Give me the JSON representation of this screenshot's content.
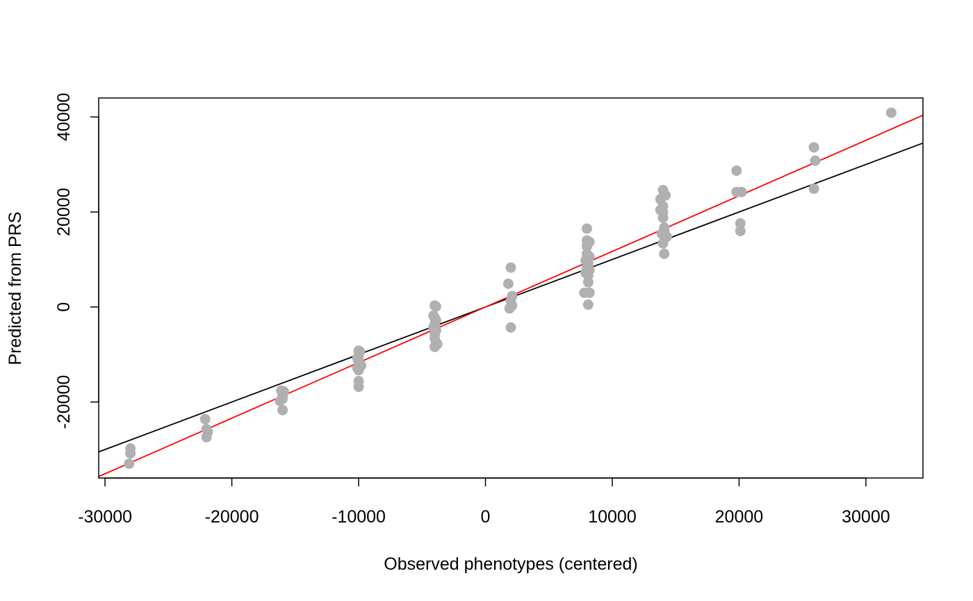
{
  "chart_data": {
    "type": "scatter",
    "title": "",
    "xlabel": "Observed phenotypes (centered)",
    "ylabel": "Predicted from PRS",
    "xlim": [
      -30500,
      34500
    ],
    "ylim": [
      -36000,
      44000
    ],
    "x_ticks": [
      -30000,
      -20000,
      -10000,
      0,
      10000,
      20000,
      30000
    ],
    "y_ticks": [
      -20000,
      0,
      20000,
      40000
    ],
    "x_tick_labels": [
      "-30000",
      "-20000",
      "-10000",
      "0",
      "10000",
      "20000",
      "30000"
    ],
    "y_tick_labels": [
      "-20000",
      "0",
      "20000",
      "40000"
    ],
    "grid": false,
    "legend": "none",
    "point_color": "#b0b0b0",
    "points": [
      {
        "x": -28000,
        "y": -29800
      },
      {
        "x": -28000,
        "y": -30800
      },
      {
        "x": -28100,
        "y": -33000
      },
      {
        "x": -22100,
        "y": -23600
      },
      {
        "x": -22000,
        "y": -25700
      },
      {
        "x": -21900,
        "y": -26300
      },
      {
        "x": -22000,
        "y": -27400
      },
      {
        "x": -16100,
        "y": -17600
      },
      {
        "x": -15900,
        "y": -17800
      },
      {
        "x": -16000,
        "y": -18700
      },
      {
        "x": -16000,
        "y": -19300
      },
      {
        "x": -16200,
        "y": -19800
      },
      {
        "x": -16000,
        "y": -21700
      },
      {
        "x": -10000,
        "y": -9200
      },
      {
        "x": -9900,
        "y": -9400
      },
      {
        "x": -10000,
        "y": -10300
      },
      {
        "x": -10100,
        "y": -10800
      },
      {
        "x": -10000,
        "y": -11500
      },
      {
        "x": -9800,
        "y": -12300
      },
      {
        "x": -10100,
        "y": -12900
      },
      {
        "x": -10000,
        "y": -13300
      },
      {
        "x": -10000,
        "y": -15600
      },
      {
        "x": -10000,
        "y": -16800
      },
      {
        "x": -4000,
        "y": 300
      },
      {
        "x": -3900,
        "y": 100
      },
      {
        "x": -4100,
        "y": -1800
      },
      {
        "x": -4000,
        "y": -2300
      },
      {
        "x": -3900,
        "y": -2800
      },
      {
        "x": -4000,
        "y": -3600
      },
      {
        "x": -4100,
        "y": -4300
      },
      {
        "x": -3900,
        "y": -4900
      },
      {
        "x": -4000,
        "y": -5700
      },
      {
        "x": -4000,
        "y": -6600
      },
      {
        "x": -3900,
        "y": -7400
      },
      {
        "x": -3800,
        "y": -7800
      },
      {
        "x": -4000,
        "y": -8400
      },
      {
        "x": 2000,
        "y": 8300
      },
      {
        "x": 1800,
        "y": 4900
      },
      {
        "x": 2100,
        "y": 2300
      },
      {
        "x": 2000,
        "y": 1300
      },
      {
        "x": 2100,
        "y": 300
      },
      {
        "x": 1900,
        "y": -300
      },
      {
        "x": 2000,
        "y": -4300
      },
      {
        "x": 8000,
        "y": 16500
      },
      {
        "x": 8000,
        "y": 14000
      },
      {
        "x": 8100,
        "y": 13600
      },
      {
        "x": 8200,
        "y": 13700
      },
      {
        "x": 8000,
        "y": 12800
      },
      {
        "x": 8000,
        "y": 11200
      },
      {
        "x": 8200,
        "y": 10600
      },
      {
        "x": 7900,
        "y": 9800
      },
      {
        "x": 8100,
        "y": 9100
      },
      {
        "x": 8000,
        "y": 8300
      },
      {
        "x": 8200,
        "y": 7800
      },
      {
        "x": 7900,
        "y": 7200
      },
      {
        "x": 8100,
        "y": 6600
      },
      {
        "x": 8100,
        "y": 5200
      },
      {
        "x": 7800,
        "y": 3000
      },
      {
        "x": 8200,
        "y": 3000
      },
      {
        "x": 8100,
        "y": 500
      },
      {
        "x": 14000,
        "y": 24600
      },
      {
        "x": 14200,
        "y": 23500
      },
      {
        "x": 13800,
        "y": 22700
      },
      {
        "x": 14000,
        "y": 21200
      },
      {
        "x": 13800,
        "y": 20400
      },
      {
        "x": 14000,
        "y": 19900
      },
      {
        "x": 14000,
        "y": 18800
      },
      {
        "x": 14100,
        "y": 16700
      },
      {
        "x": 14100,
        "y": 16100
      },
      {
        "x": 13900,
        "y": 15400
      },
      {
        "x": 14300,
        "y": 14800
      },
      {
        "x": 14000,
        "y": 13400
      },
      {
        "x": 14100,
        "y": 11200
      },
      {
        "x": 19800,
        "y": 28700
      },
      {
        "x": 19800,
        "y": 24200
      },
      {
        "x": 20200,
        "y": 24200
      },
      {
        "x": 20100,
        "y": 17600
      },
      {
        "x": 20100,
        "y": 16000
      },
      {
        "x": 25900,
        "y": 33600
      },
      {
        "x": 26000,
        "y": 30800
      },
      {
        "x": 25900,
        "y": 24900
      },
      {
        "x": 32000,
        "y": 40900
      }
    ],
    "lines": [
      {
        "color": "#000000",
        "intercept": 0,
        "slope": 1.0
      },
      {
        "color": "#ff0000",
        "intercept": 0,
        "slope": 1.17
      }
    ]
  }
}
